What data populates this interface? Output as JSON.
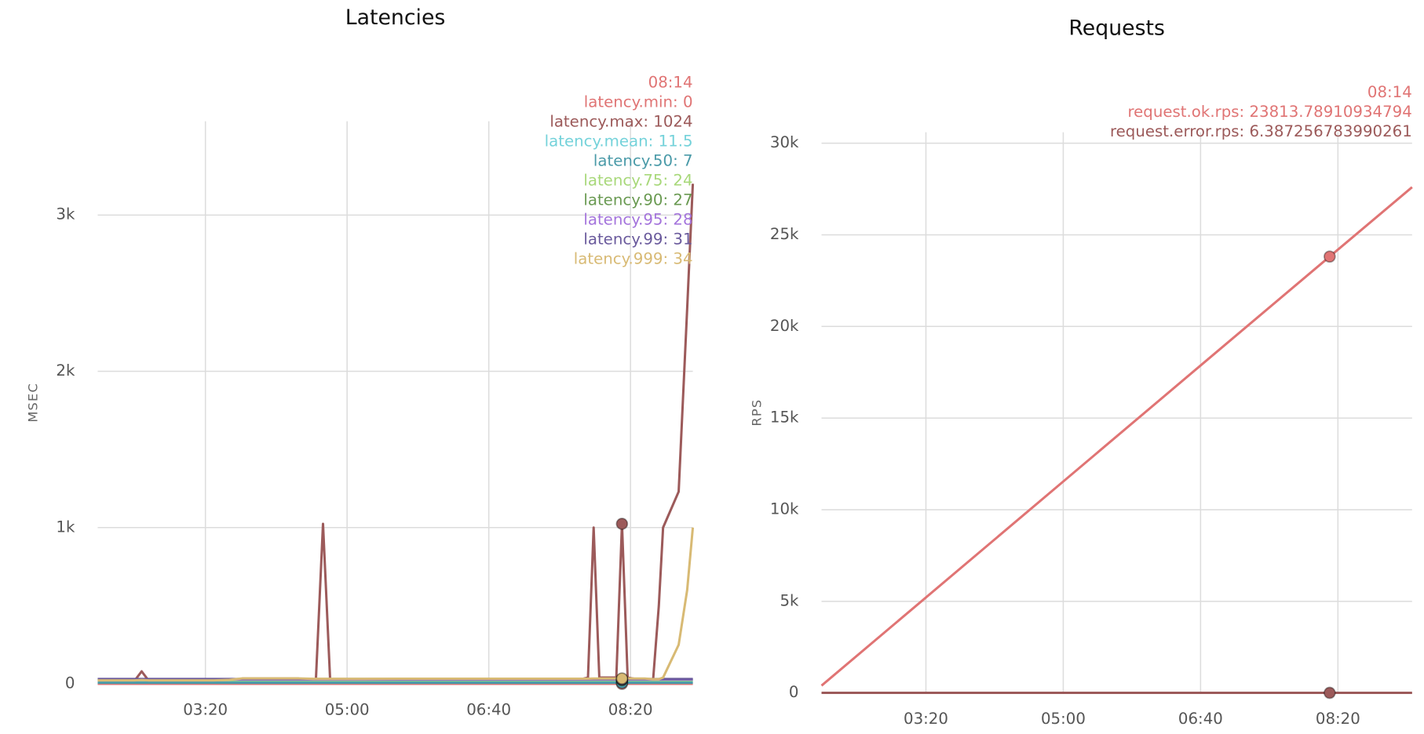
{
  "chart_data": [
    {
      "type": "line",
      "title": "Latencies",
      "y_label": "MSEC",
      "grid": true,
      "x": [
        124,
        134,
        144,
        150,
        155,
        160,
        170,
        186,
        206,
        216,
        226,
        246,
        266,
        276,
        278,
        283,
        288,
        290,
        310,
        340,
        370,
        400,
        430,
        460,
        466,
        470,
        474,
        478,
        486,
        490,
        494,
        498,
        506,
        510,
        516,
        520,
        523,
        534,
        540,
        544
      ],
      "xlim": [
        124,
        544
      ],
      "xticks": [
        {
          "value": 200,
          "label": "03:20"
        },
        {
          "value": 300,
          "label": "05:00"
        },
        {
          "value": 400,
          "label": "06:40"
        },
        {
          "value": 500,
          "label": "08:20"
        }
      ],
      "ylim": [
        0,
        3600
      ],
      "yticks": [
        0,
        {
          "value": 1000,
          "label": "1k"
        },
        {
          "value": 2000,
          "label": "2k"
        },
        {
          "value": 3000,
          "label": "3k"
        }
      ],
      "hover_index": 30,
      "tooltip": [
        "08:14",
        "latency.min: 0",
        "latency.max: 1024",
        "latency.mean: 11.5",
        "latency.50: 7",
        "latency.75: 24",
        "latency.90: 27",
        "latency.95: 28",
        "latency.99: 31",
        "latency.999: 34"
      ],
      "series": [
        {
          "name": "latency.min",
          "color": "#e07474",
          "values": [
            0,
            0,
            0,
            0,
            0,
            0,
            0,
            0,
            0,
            0,
            0,
            0,
            0,
            0,
            0,
            0,
            0,
            0,
            0,
            0,
            0,
            0,
            0,
            0,
            0,
            0,
            0,
            0,
            0,
            0,
            0,
            0,
            0,
            0,
            0,
            0,
            0,
            0,
            0,
            0
          ]
        },
        {
          "name": "latency.max",
          "color": "#9c5a5a",
          "values": [
            20,
            20,
            20,
            20,
            80,
            20,
            18,
            18,
            18,
            20,
            30,
            32,
            30,
            28,
            30,
            1024,
            30,
            28,
            28,
            30,
            30,
            30,
            30,
            30,
            32,
            40,
            1000,
            40,
            40,
            40,
            1024,
            40,
            28,
            30,
            30,
            500,
            1000,
            1230,
            2400,
            3200
          ]
        },
        {
          "name": "latency.mean",
          "color": "#74d2da",
          "values": [
            12,
            12,
            12,
            12,
            12,
            12,
            12,
            12,
            12,
            12,
            12,
            12,
            12,
            12,
            12,
            12,
            12,
            12,
            12,
            12,
            12,
            12,
            12,
            12,
            12,
            12,
            12,
            12,
            12,
            12,
            11.5,
            12,
            12,
            12,
            12,
            12,
            12,
            12,
            12,
            12
          ]
        },
        {
          "name": "latency.50",
          "color": "#4a9aa8",
          "values": [
            7,
            7,
            7,
            7,
            7,
            7,
            7,
            7,
            7,
            7,
            7,
            7,
            7,
            7,
            7,
            7,
            7,
            7,
            7,
            7,
            7,
            7,
            7,
            7,
            7,
            7,
            7,
            7,
            7,
            7,
            7,
            7,
            7,
            7,
            7,
            7,
            7,
            7,
            7,
            7
          ]
        },
        {
          "name": "latency.75",
          "color": "#a8d87a",
          "values": [
            24,
            24,
            24,
            24,
            24,
            24,
            24,
            24,
            24,
            24,
            24,
            24,
            24,
            24,
            24,
            24,
            24,
            24,
            24,
            24,
            24,
            24,
            24,
            24,
            24,
            24,
            24,
            24,
            24,
            24,
            24,
            24,
            24,
            24,
            24,
            24,
            24,
            24,
            24,
            24
          ]
        },
        {
          "name": "latency.90",
          "color": "#6a9a52",
          "values": [
            27,
            27,
            27,
            27,
            27,
            27,
            27,
            27,
            27,
            27,
            27,
            27,
            27,
            27,
            27,
            27,
            27,
            27,
            27,
            27,
            27,
            27,
            27,
            27,
            27,
            27,
            27,
            27,
            27,
            27,
            27,
            27,
            27,
            27,
            27,
            27,
            27,
            27,
            27,
            27
          ]
        },
        {
          "name": "latency.95",
          "color": "#a474dc",
          "values": [
            28,
            28,
            28,
            28,
            28,
            28,
            28,
            28,
            28,
            28,
            28,
            28,
            28,
            28,
            28,
            28,
            28,
            28,
            28,
            28,
            28,
            28,
            28,
            28,
            28,
            28,
            28,
            28,
            28,
            28,
            28,
            28,
            28,
            28,
            28,
            28,
            28,
            28,
            28,
            28
          ]
        },
        {
          "name": "latency.99",
          "color": "#6a5a9c",
          "values": [
            31,
            31,
            31,
            31,
            31,
            31,
            31,
            31,
            31,
            31,
            31,
            31,
            31,
            31,
            31,
            31,
            31,
            31,
            31,
            31,
            31,
            31,
            31,
            31,
            31,
            31,
            31,
            31,
            31,
            31,
            31,
            31,
            31,
            31,
            31,
            31,
            31,
            31,
            31,
            31
          ]
        },
        {
          "name": "latency.999",
          "color": "#d8ba74",
          "values": [
            22,
            22,
            22,
            22,
            25,
            22,
            22,
            22,
            22,
            25,
            35,
            35,
            35,
            32,
            32,
            32,
            32,
            32,
            32,
            33,
            33,
            33,
            33,
            33,
            33,
            33,
            34,
            34,
            34,
            34,
            34,
            34,
            34,
            34,
            30,
            30,
            40,
            250,
            600,
            1000
          ]
        }
      ]
    },
    {
      "type": "line",
      "title": "Requests",
      "y_label": "RPS",
      "grid": true,
      "x": [
        124,
        200,
        300,
        400,
        494,
        554
      ],
      "xlim": [
        124,
        554
      ],
      "xticks": [
        {
          "value": 200,
          "label": "03:20"
        },
        {
          "value": 300,
          "label": "05:00"
        },
        {
          "value": 400,
          "label": "06:40"
        },
        {
          "value": 500,
          "label": "08:20"
        }
      ],
      "ylim": [
        0,
        30600
      ],
      "yticks": [
        0,
        {
          "value": 5000,
          "label": "5k"
        },
        {
          "value": 10000,
          "label": "10k"
        },
        {
          "value": 15000,
          "label": "15k"
        },
        {
          "value": 20000,
          "label": "20k"
        },
        {
          "value": 25000,
          "label": "25k"
        },
        {
          "value": 30000,
          "label": "30k"
        }
      ],
      "hover_index": 4,
      "tooltip": [
        "08:14",
        "request.ok.rps: 23813.78910934794",
        "request.error.rps: 6.387256783990261"
      ],
      "series": [
        {
          "name": "request.ok.rps",
          "color": "#e07474",
          "values": [
            400,
            5210,
            11540,
            17870,
            23813.78910934794,
            27600
          ]
        },
        {
          "name": "request.error.rps",
          "color": "#9c5a5a",
          "values": [
            6.2,
            6.3,
            6.4,
            6.4,
            6.387256783990261,
            6.4
          ]
        }
      ]
    }
  ]
}
